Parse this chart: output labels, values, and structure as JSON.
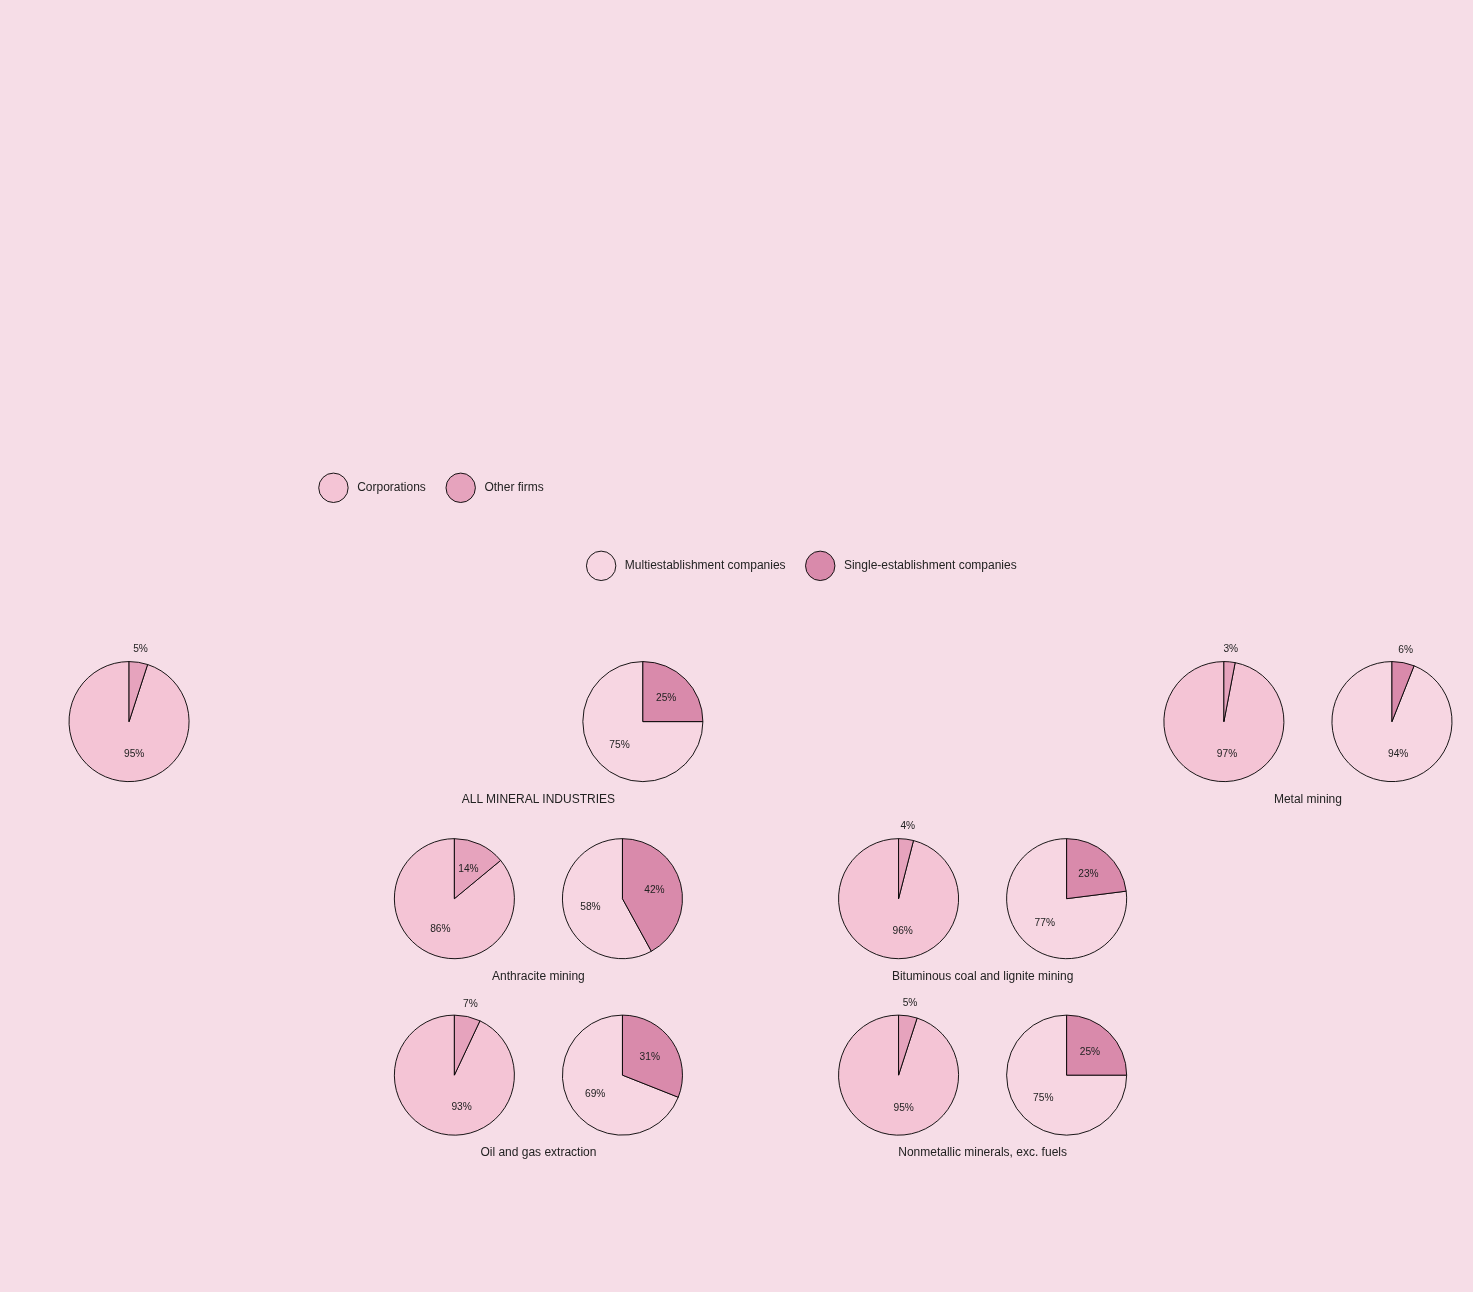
{
  "chart_data": [
    {
      "type": "pie",
      "title": "ALL MINERAL INDUSTRIES",
      "legend": "top",
      "categories": [
        "Corporations",
        "Other firms"
      ],
      "values": [
        95,
        5
      ],
      "value_labels": [
        "95%",
        "5%"
      ],
      "colors": [
        "#f4c4d5",
        "#e6a3bd"
      ]
    },
    {
      "type": "pie",
      "legend": "top",
      "categories": [
        "Multiestablishment companies",
        "Single-establishment companies"
      ],
      "values": [
        75,
        25
      ],
      "value_labels": [
        "75%",
        "25%"
      ],
      "colors": [
        "#f7d6e2",
        "#d98aab"
      ]
    },
    {
      "type": "pie",
      "title": "Metal mining",
      "categories": [
        null,
        null
      ],
      "values": [
        97,
        3
      ],
      "value_labels": [
        "97%",
        "3%"
      ],
      "colors": [
        "#f4c4d5",
        "#e6a3bd"
      ]
    },
    {
      "type": "pie",
      "categories": [
        null,
        null
      ],
      "values": [
        94,
        6
      ],
      "value_labels": [
        "94%",
        "6%"
      ],
      "colors": [
        "#f7d6e2",
        "#d98aab"
      ]
    },
    {
      "type": "pie",
      "title": "Anthracite mining",
      "categories": [
        null,
        null
      ],
      "values": [
        86,
        14
      ],
      "value_labels": [
        "86%",
        "14%"
      ],
      "colors": [
        "#f4c4d5",
        "#e6a3bd"
      ]
    },
    {
      "type": "pie",
      "categories": [
        null,
        null
      ],
      "values": [
        58,
        42
      ],
      "value_labels": [
        "58%",
        "42%"
      ],
      "colors": [
        "#f7d6e2",
        "#d98aab"
      ]
    },
    {
      "type": "pie",
      "title": "Bituminous coal and lignite mining",
      "categories": [
        null,
        null
      ],
      "values": [
        96,
        4
      ],
      "value_labels": [
        "96%",
        "4%"
      ],
      "colors": [
        "#f4c4d5",
        "#e6a3bd"
      ]
    },
    {
      "type": "pie",
      "categories": [
        null,
        null
      ],
      "values": [
        77,
        23
      ],
      "value_labels": [
        "77%",
        "23%"
      ],
      "colors": [
        "#f7d6e2",
        "#d98aab"
      ]
    },
    {
      "type": "pie",
      "title": "Oil and gas extraction",
      "categories": [
        null,
        null
      ],
      "values": [
        93,
        7
      ],
      "value_labels": [
        "93%",
        "7%"
      ],
      "colors": [
        "#f4c4d5",
        "#e6a3bd"
      ]
    },
    {
      "type": "pie",
      "categories": [
        null,
        null
      ],
      "values": [
        69,
        31
      ],
      "value_labels": [
        "69%",
        "31%"
      ],
      "colors": [
        "#f7d6e2",
        "#d98aab"
      ]
    },
    {
      "type": "pie",
      "title": "Nonmetallic minerals, exc. fuels",
      "categories": [
        null,
        null
      ],
      "values": [
        95,
        5
      ],
      "value_labels": [
        "95%",
        "5%"
      ],
      "colors": [
        "#f4c4d5",
        "#e6a3bd"
      ]
    },
    {
      "type": "pie",
      "categories": [
        null,
        null
      ],
      "values": [
        75,
        25
      ],
      "value_labels": [
        "75%",
        "25%"
      ],
      "colors": [
        "#f7d6e2",
        "#d98aab"
      ]
    }
  ]
}
